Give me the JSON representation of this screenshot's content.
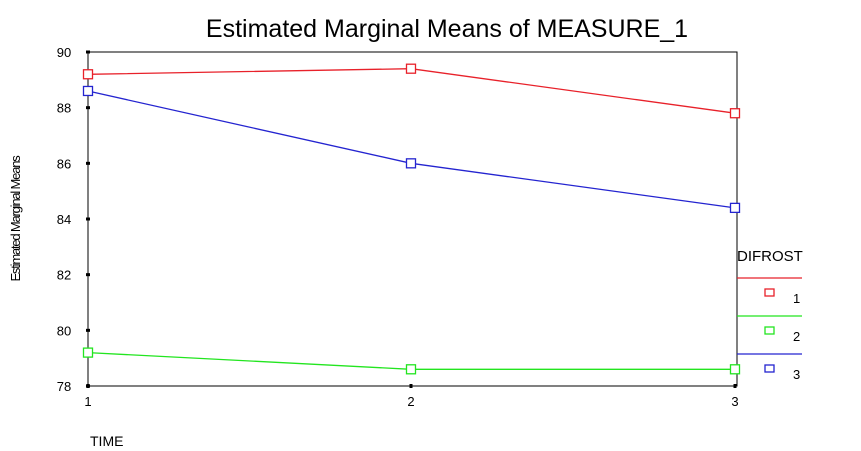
{
  "chart_data": {
    "type": "line",
    "title": "Estimated Marginal Means of MEASURE_1",
    "xlabel": "TIME",
    "ylabel": "Estimated Marginal Means",
    "categories": [
      "1",
      "2",
      "3"
    ],
    "ylim": [
      78,
      90
    ],
    "yticks": [
      78,
      80,
      82,
      84,
      86,
      88,
      90
    ],
    "grid": false,
    "legend_title": "DIFROST",
    "legend_position": "right",
    "series": [
      {
        "name": "1",
        "color": "#e8212a",
        "values": [
          89.2,
          89.4,
          87.8
        ]
      },
      {
        "name": "2",
        "color": "#22e51f",
        "values": [
          79.2,
          78.6,
          78.6
        ]
      },
      {
        "name": "3",
        "color": "#2424d0",
        "values": [
          88.6,
          86.0,
          84.4
        ]
      }
    ]
  }
}
